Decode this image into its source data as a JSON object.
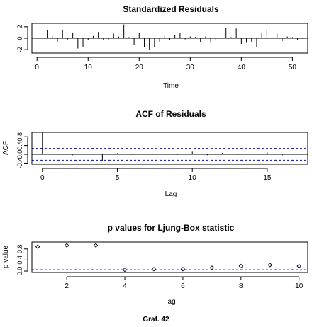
{
  "caption": "Graf. 42",
  "chart_data": [
    {
      "type": "bar",
      "title": "Standardized Residuals",
      "xlabel": "Time",
      "ylabel": "",
      "xlim": [
        -1,
        53
      ],
      "ylim": [
        -2.6,
        2.6
      ],
      "xticks": [
        0,
        10,
        20,
        30,
        40,
        50
      ],
      "yticks": [
        -2,
        0,
        2
      ],
      "x": [
        1,
        2,
        3,
        4,
        5,
        6,
        7,
        8,
        9,
        10,
        11,
        12,
        13,
        14,
        15,
        16,
        17,
        18,
        19,
        20,
        21,
        22,
        23,
        24,
        25,
        26,
        27,
        28,
        29,
        30,
        31,
        32,
        33,
        34,
        35,
        36,
        37,
        38,
        39,
        40,
        41,
        42,
        43,
        44,
        45,
        46,
        47,
        48,
        49,
        50,
        51,
        52
      ],
      "values": [
        0.0,
        1.4,
        0.3,
        -0.6,
        1.5,
        -0.2,
        1.0,
        -1.8,
        -1.5,
        -0.3,
        0.4,
        1.1,
        -0.3,
        -0.2,
        0.8,
        0.3,
        2.4,
        0.2,
        -1.2,
        1.0,
        -1.5,
        -2.0,
        -1.5,
        -0.6,
        0.4,
        -0.3,
        0.5,
        0.9,
        -0.2,
        0.3,
        0.2,
        -0.7,
        0.3,
        -0.8,
        -0.4,
        0.5,
        1.8,
        0.2,
        1.7,
        -1.0,
        -0.8,
        -0.6,
        -1.6,
        1.0,
        1.5,
        0.2,
        0.8,
        -0.5,
        0.3,
        0.2,
        -0.3,
        -0.1
      ]
    },
    {
      "type": "bar",
      "title": "ACF of Residuals",
      "xlabel": "Lag",
      "ylabel": "ACF",
      "xlim": [
        -0.7,
        17.7
      ],
      "ylim": [
        -0.45,
        1.0
      ],
      "xticks": [
        0,
        5,
        10,
        15
      ],
      "yticks": [
        -0.4,
        0.0,
        0.4,
        0.8
      ],
      "x": [
        0,
        1,
        2,
        3,
        4,
        5,
        6,
        7,
        8,
        9,
        10,
        11,
        12,
        13,
        14,
        15,
        16,
        17
      ],
      "values": [
        1.0,
        0.02,
        -0.05,
        0.03,
        -0.3,
        0.05,
        -0.02,
        0.04,
        0.01,
        -0.03,
        0.12,
        -0.04,
        0.06,
        -0.02,
        0.03,
        0.08,
        -0.05,
        0.02
      ],
      "confidence_band": [
        -0.27,
        0.27
      ]
    },
    {
      "type": "scatter",
      "title": "p values for Ljung-Box statistic",
      "xlabel": "lag",
      "ylabel": "p value",
      "xlim": [
        0.8,
        10.3
      ],
      "ylim": [
        -0.05,
        1.05
      ],
      "xticks": [
        2,
        4,
        6,
        8,
        10
      ],
      "yticks": [
        0.0,
        0.4,
        0.8
      ],
      "x": [
        1,
        2,
        3,
        4,
        5,
        6,
        7,
        8,
        9,
        10
      ],
      "values": [
        0.88,
        0.93,
        0.93,
        0.05,
        0.07,
        0.07,
        0.12,
        0.18,
        0.22,
        0.18
      ],
      "reference_line": 0.05
    }
  ]
}
